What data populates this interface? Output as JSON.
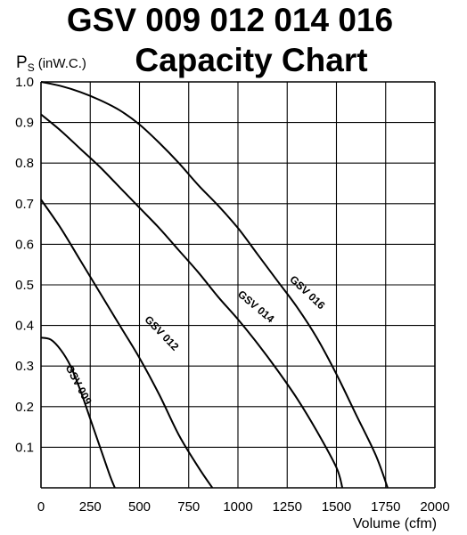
{
  "chart_data": {
    "type": "line",
    "title_line1": "GSV  009  012  014  016",
    "title_line2": "Capacity Chart",
    "ylabel_main": "P",
    "ylabel_sub": "S",
    "ylabel_unit": "(inW.C.)",
    "xlabel": "Volume (cfm)",
    "xlim": [
      0,
      2000
    ],
    "ylim": [
      0,
      1.0
    ],
    "grid": true,
    "x_ticks": [
      "0",
      "250",
      "500",
      "750",
      "1000",
      "1250",
      "1500",
      "1750",
      "2000"
    ],
    "y_ticks": [
      "1.0",
      "0.9",
      "0.8",
      "0.7",
      "0.6",
      "0.5",
      "0.4",
      "0.3",
      "0.2",
      "0.1"
    ],
    "series": [
      {
        "name": "GSV 009",
        "points": [
          [
            0,
            0.37
          ],
          [
            50,
            0.365
          ],
          [
            100,
            0.34
          ],
          [
            150,
            0.3
          ],
          [
            200,
            0.24
          ],
          [
            250,
            0.17
          ],
          [
            300,
            0.1
          ],
          [
            350,
            0.03
          ],
          [
            375,
            0
          ]
        ]
      },
      {
        "name": "GSV 012",
        "points": [
          [
            0,
            0.71
          ],
          [
            100,
            0.64
          ],
          [
            200,
            0.56
          ],
          [
            300,
            0.48
          ],
          [
            400,
            0.4
          ],
          [
            500,
            0.32
          ],
          [
            600,
            0.23
          ],
          [
            700,
            0.13
          ],
          [
            800,
            0.05
          ],
          [
            870,
            0
          ]
        ]
      },
      {
        "name": "GSV 014",
        "points": [
          [
            0,
            0.92
          ],
          [
            100,
            0.88
          ],
          [
            200,
            0.835
          ],
          [
            300,
            0.79
          ],
          [
            400,
            0.74
          ],
          [
            500,
            0.69
          ],
          [
            600,
            0.64
          ],
          [
            700,
            0.585
          ],
          [
            800,
            0.53
          ],
          [
            900,
            0.47
          ],
          [
            1000,
            0.415
          ],
          [
            1100,
            0.355
          ],
          [
            1200,
            0.29
          ],
          [
            1300,
            0.22
          ],
          [
            1400,
            0.14
          ],
          [
            1500,
            0.05
          ],
          [
            1530,
            0
          ]
        ]
      },
      {
        "name": "GSV 016",
        "points": [
          [
            0,
            1.0
          ],
          [
            100,
            0.99
          ],
          [
            200,
            0.975
          ],
          [
            300,
            0.955
          ],
          [
            400,
            0.93
          ],
          [
            500,
            0.895
          ],
          [
            600,
            0.85
          ],
          [
            700,
            0.8
          ],
          [
            800,
            0.745
          ],
          [
            900,
            0.695
          ],
          [
            1000,
            0.64
          ],
          [
            1100,
            0.575
          ],
          [
            1200,
            0.51
          ],
          [
            1300,
            0.445
          ],
          [
            1400,
            0.37
          ],
          [
            1500,
            0.28
          ],
          [
            1600,
            0.18
          ],
          [
            1700,
            0.08
          ],
          [
            1760,
            0
          ]
        ]
      }
    ]
  }
}
